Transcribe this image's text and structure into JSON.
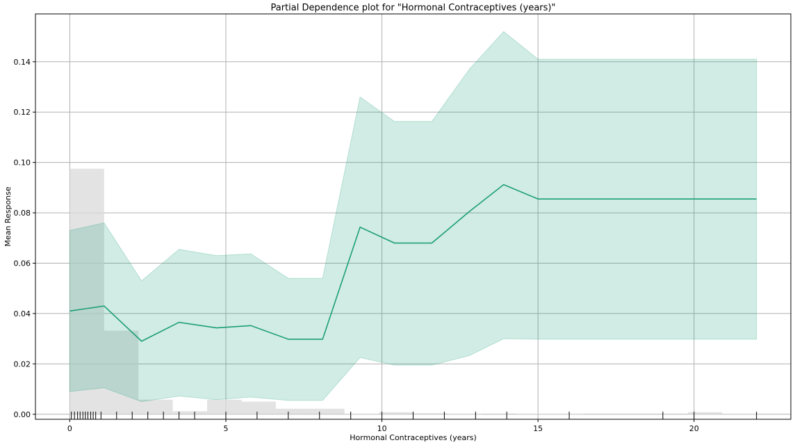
{
  "chart_data": {
    "type": "line",
    "title": "Partial Dependence plot for \"Hormonal Contraceptives (years)\"",
    "xlabel": "Hormonal Contraceptives (years)",
    "ylabel": "Mean Response",
    "xlim": [
      -1.1,
      23.1
    ],
    "ylim": [
      -0.002,
      0.159
    ],
    "xticks": [
      0,
      5,
      10,
      15,
      20
    ],
    "xtick_labels": [
      "0",
      "5",
      "10",
      "15",
      "20"
    ],
    "yticks": [
      0.0,
      0.02,
      0.04,
      0.06,
      0.08,
      0.1,
      0.12,
      0.14
    ],
    "ytick_labels": [
      "0.00",
      "0.02",
      "0.04",
      "0.06",
      "0.08",
      "0.10",
      "0.12",
      "0.14"
    ],
    "grid": true,
    "series": [
      {
        "x": [
          0,
          1.1,
          2.3,
          3.5,
          4.7,
          5.8,
          7.0,
          8.1,
          9.3,
          10.4,
          11.6,
          12.8,
          13.9,
          15.0,
          22.0
        ],
        "values": [
          0.041,
          0.043,
          0.029,
          0.0365,
          0.0343,
          0.0352,
          0.0298,
          0.0298,
          0.0743,
          0.068,
          0.068,
          0.0805,
          0.0912,
          0.0855,
          0.0855
        ],
        "lower": [
          0.009,
          0.0105,
          0.005,
          0.0072,
          0.0058,
          0.0068,
          0.0055,
          0.0055,
          0.0225,
          0.0195,
          0.0195,
          0.0233,
          0.03,
          0.0298,
          0.0298
        ],
        "upper": [
          0.073,
          0.076,
          0.053,
          0.0655,
          0.063,
          0.0637,
          0.054,
          0.054,
          0.126,
          0.1163,
          0.1163,
          0.137,
          0.152,
          0.141,
          0.141
        ],
        "color": "#1b9e77",
        "band_color": "#1b9e77"
      }
    ],
    "histogram": {
      "color": "#d9d9d9",
      "bins": [
        {
          "x0": 0.0,
          "x1": 1.1,
          "value": 0.0975
        },
        {
          "x0": 1.1,
          "x1": 2.2,
          "value": 0.0332
        },
        {
          "x0": 2.2,
          "x1": 3.3,
          "value": 0.0058
        },
        {
          "x0": 3.3,
          "x1": 4.4,
          "value": 0.0012
        },
        {
          "x0": 4.4,
          "x1": 5.5,
          "value": 0.0058
        },
        {
          "x0": 5.5,
          "x1": 6.6,
          "value": 0.005
        },
        {
          "x0": 6.6,
          "x1": 7.7,
          "value": 0.0022
        },
        {
          "x0": 7.7,
          "x1": 8.8,
          "value": 0.0022
        },
        {
          "x0": 8.8,
          "x1": 9.9,
          "value": 0.0001
        },
        {
          "x0": 9.9,
          "x1": 11.0,
          "value": 0.0008
        },
        {
          "x0": 11.0,
          "x1": 12.1,
          "value": 0.0004
        },
        {
          "x0": 12.1,
          "x1": 13.2,
          "value": 0.0001
        },
        {
          "x0": 13.2,
          "x1": 14.3,
          "value": 0.0
        },
        {
          "x0": 14.3,
          "x1": 15.4,
          "value": 0.0001
        },
        {
          "x0": 15.4,
          "x1": 16.5,
          "value": 0.0001
        },
        {
          "x0": 16.5,
          "x1": 17.6,
          "value": 0.0
        },
        {
          "x0": 17.6,
          "x1": 18.7,
          "value": 0.0
        },
        {
          "x0": 18.7,
          "x1": 19.8,
          "value": 0.0
        },
        {
          "x0": 19.8,
          "x1": 20.9,
          "value": 0.0008
        },
        {
          "x0": 20.9,
          "x1": 22.0,
          "value": 0.0001
        }
      ]
    },
    "rug": [
      0.05,
      0.15,
      0.25,
      0.33,
      0.42,
      0.5,
      0.58,
      0.67,
      0.75,
      0.83,
      1.0,
      1.5,
      2.0,
      2.5,
      3.0,
      3.5,
      4.0,
      5.0,
      6.0,
      7.0,
      8.0,
      9.0,
      10.0,
      11.0,
      12.0,
      13.0,
      14.0,
      16.0,
      19.0,
      20.0,
      22.0
    ]
  }
}
